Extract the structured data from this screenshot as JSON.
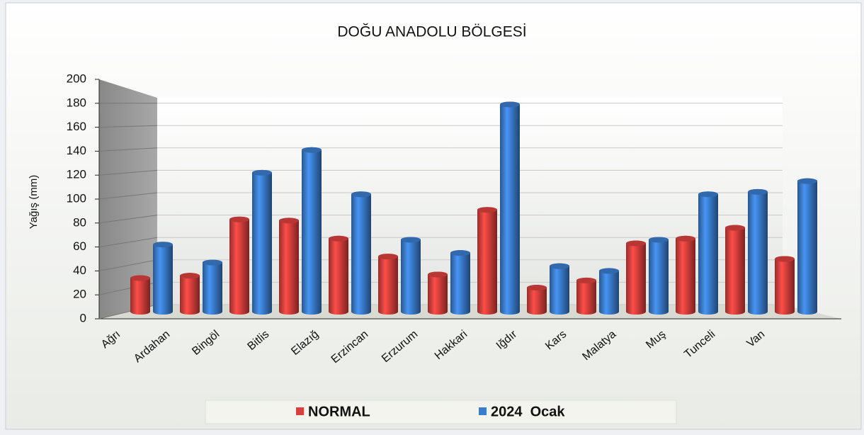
{
  "chart_data": {
    "type": "bar",
    "title": "DOĞU ANADOLU BÖLGESİ",
    "y_label": "Yağış (mm)",
    "categories": [
      "Ağrı",
      "Ardahan",
      "Bingöl",
      "Bitlis",
      "Elazığ",
      "Erzincan",
      "Erzurum",
      "Hakkari",
      "Iğdır",
      "Kars",
      "Malatya",
      "Muş",
      "Tunceli",
      "Van"
    ],
    "series": [
      {
        "name": "NORMAL",
        "color": "#d8403c",
        "values": [
          34,
          36,
          83,
          82,
          67,
          52,
          37,
          91,
          26,
          32,
          63,
          67,
          76,
          50
        ]
      },
      {
        "name": "2024  Ocak",
        "color": "#3b7ccc",
        "values": [
          62,
          47,
          122,
          141,
          104,
          66,
          55,
          179,
          44,
          40,
          66,
          104,
          106,
          115
        ]
      }
    ],
    "ylim": [
      0,
      200
    ],
    "yticks": [
      0,
      20,
      40,
      60,
      80,
      100,
      120,
      140,
      160,
      180,
      200
    ],
    "grid": true,
    "legend": "bottom"
  }
}
